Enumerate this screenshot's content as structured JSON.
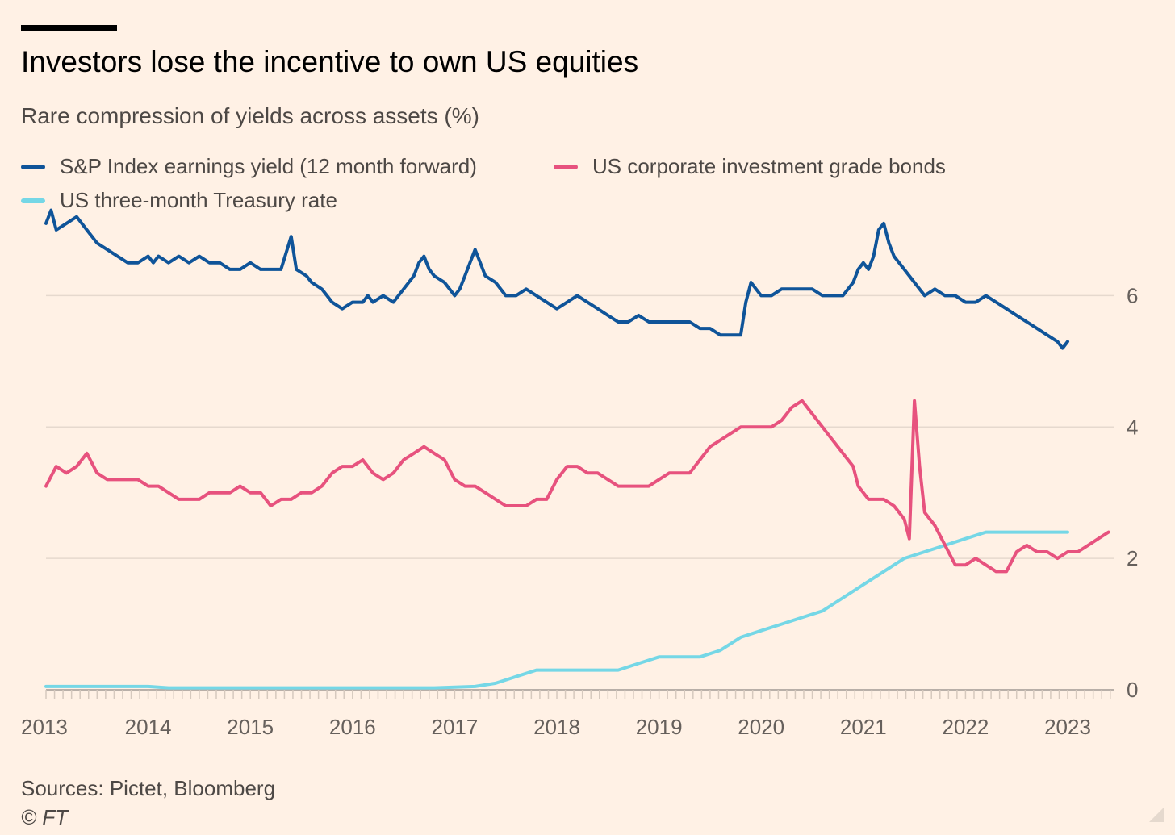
{
  "title": "Investors lose the incentive to own US equities",
  "subtitle": "Rare compression of yields across assets (%)",
  "source": "Sources: Pictet, Bloomberg",
  "copyright": "© FT",
  "chart_data": {
    "type": "line",
    "title": "Investors lose the incentive to own US equities",
    "subtitle": "Rare compression of yields across assets (%)",
    "xlabel": "",
    "ylabel": "%",
    "xlim": [
      2013.0,
      2023.45
    ],
    "ylim": [
      0,
      7
    ],
    "y_ticks": [
      0,
      2,
      4,
      6
    ],
    "y_axis_position": "right",
    "x_ticks": [
      {
        "value": 2013.0,
        "label": "2013"
      },
      {
        "value": 2014.0,
        "label": "2014"
      },
      {
        "value": 2015.0,
        "label": "2015"
      },
      {
        "value": 2016.0,
        "label": "2016"
      },
      {
        "value": 2017.0,
        "label": "2017"
      },
      {
        "value": 2018.0,
        "label": "2018"
      },
      {
        "value": 2019.0,
        "label": "2019"
      },
      {
        "value": 2020.0,
        "label": "2020"
      },
      {
        "value": 2021.0,
        "label": "2021"
      },
      {
        "value": 2022.0,
        "label": "2022"
      },
      {
        "value": 2023.0,
        "label": "2023"
      }
    ],
    "grid": true,
    "legend_position": "top-left",
    "series": [
      {
        "name": "S&P Index earnings yield (12 month forward)",
        "color": "#0F5499",
        "points": [
          [
            2013.0,
            7.1
          ],
          [
            2013.05,
            7.3
          ],
          [
            2013.1,
            7.0
          ],
          [
            2013.2,
            7.1
          ],
          [
            2013.3,
            7.2
          ],
          [
            2013.4,
            7.0
          ],
          [
            2013.5,
            6.8
          ],
          [
            2013.6,
            6.7
          ],
          [
            2013.7,
            6.6
          ],
          [
            2013.8,
            6.5
          ],
          [
            2013.9,
            6.5
          ],
          [
            2014.0,
            6.6
          ],
          [
            2014.05,
            6.5
          ],
          [
            2014.1,
            6.6
          ],
          [
            2014.2,
            6.5
          ],
          [
            2014.3,
            6.6
          ],
          [
            2014.4,
            6.5
          ],
          [
            2014.5,
            6.6
          ],
          [
            2014.6,
            6.5
          ],
          [
            2014.7,
            6.5
          ],
          [
            2014.8,
            6.4
          ],
          [
            2014.9,
            6.4
          ],
          [
            2015.0,
            6.5
          ],
          [
            2015.1,
            6.4
          ],
          [
            2015.2,
            6.4
          ],
          [
            2015.3,
            6.4
          ],
          [
            2015.4,
            6.9
          ],
          [
            2015.45,
            6.4
          ],
          [
            2015.55,
            6.3
          ],
          [
            2015.6,
            6.2
          ],
          [
            2015.7,
            6.1
          ],
          [
            2015.75,
            6.0
          ],
          [
            2015.8,
            5.9
          ],
          [
            2015.9,
            5.8
          ],
          [
            2016.0,
            5.9
          ],
          [
            2016.1,
            5.9
          ],
          [
            2016.15,
            6.0
          ],
          [
            2016.2,
            5.9
          ],
          [
            2016.3,
            6.0
          ],
          [
            2016.4,
            5.9
          ],
          [
            2016.5,
            6.1
          ],
          [
            2016.6,
            6.3
          ],
          [
            2016.65,
            6.5
          ],
          [
            2016.7,
            6.6
          ],
          [
            2016.75,
            6.4
          ],
          [
            2016.8,
            6.3
          ],
          [
            2016.9,
            6.2
          ],
          [
            2017.0,
            6.0
          ],
          [
            2017.05,
            6.1
          ],
          [
            2017.1,
            6.3
          ],
          [
            2017.15,
            6.5
          ],
          [
            2017.2,
            6.7
          ],
          [
            2017.25,
            6.5
          ],
          [
            2017.3,
            6.3
          ],
          [
            2017.4,
            6.2
          ],
          [
            2017.5,
            6.0
          ],
          [
            2017.6,
            6.0
          ],
          [
            2017.7,
            6.1
          ],
          [
            2017.8,
            6.0
          ],
          [
            2017.9,
            5.9
          ],
          [
            2018.0,
            5.8
          ],
          [
            2018.1,
            5.9
          ],
          [
            2018.2,
            6.0
          ],
          [
            2018.3,
            5.9
          ],
          [
            2018.4,
            5.8
          ],
          [
            2018.5,
            5.7
          ],
          [
            2018.6,
            5.6
          ],
          [
            2018.7,
            5.6
          ],
          [
            2018.8,
            5.7
          ],
          [
            2018.9,
            5.6
          ],
          [
            2019.0,
            5.6
          ],
          [
            2019.1,
            5.6
          ],
          [
            2019.2,
            5.6
          ],
          [
            2019.3,
            5.6
          ],
          [
            2019.4,
            5.5
          ],
          [
            2019.5,
            5.5
          ],
          [
            2019.6,
            5.4
          ],
          [
            2019.7,
            5.4
          ],
          [
            2019.8,
            5.4
          ],
          [
            2019.85,
            5.9
          ],
          [
            2019.9,
            6.2
          ],
          [
            2019.95,
            6.1
          ],
          [
            2020.0,
            6.0
          ],
          [
            2020.1,
            6.0
          ],
          [
            2020.2,
            6.1
          ],
          [
            2020.3,
            6.1
          ],
          [
            2020.4,
            6.1
          ],
          [
            2020.5,
            6.1
          ],
          [
            2020.6,
            6.0
          ],
          [
            2020.7,
            6.0
          ],
          [
            2020.8,
            6.0
          ],
          [
            2020.9,
            6.2
          ],
          [
            2020.95,
            6.4
          ],
          [
            2021.0,
            6.5
          ],
          [
            2021.05,
            6.4
          ],
          [
            2021.1,
            6.6
          ],
          [
            2021.15,
            7.0
          ],
          [
            2021.2,
            7.1
          ],
          [
            2021.25,
            6.8
          ],
          [
            2021.3,
            6.6
          ],
          [
            2021.4,
            6.4
          ],
          [
            2021.5,
            6.2
          ],
          [
            2021.6,
            6.0
          ],
          [
            2021.7,
            6.1
          ],
          [
            2021.8,
            6.0
          ],
          [
            2021.9,
            6.0
          ],
          [
            2022.0,
            5.9
          ],
          [
            2022.1,
            5.9
          ],
          [
            2022.2,
            6.0
          ],
          [
            2022.3,
            5.9
          ],
          [
            2022.4,
            5.8
          ],
          [
            2022.5,
            5.7
          ],
          [
            2022.6,
            5.6
          ],
          [
            2022.7,
            5.5
          ],
          [
            2022.8,
            5.4
          ],
          [
            2022.9,
            5.3
          ],
          [
            2022.95,
            5.2
          ],
          [
            2023.0,
            5.3
          ]
        ]
      },
      {
        "name": "US corporate investment grade bonds",
        "color": "#E7527E",
        "points": [
          [
            2013.0,
            3.1
          ],
          [
            2013.1,
            3.4
          ],
          [
            2013.2,
            3.3
          ],
          [
            2013.3,
            3.4
          ],
          [
            2013.4,
            3.6
          ],
          [
            2013.5,
            3.3
          ],
          [
            2013.6,
            3.2
          ],
          [
            2013.7,
            3.2
          ],
          [
            2013.8,
            3.2
          ],
          [
            2013.9,
            3.2
          ],
          [
            2014.0,
            3.1
          ],
          [
            2014.1,
            3.1
          ],
          [
            2014.2,
            3.0
          ],
          [
            2014.3,
            2.9
          ],
          [
            2014.4,
            2.9
          ],
          [
            2014.5,
            2.9
          ],
          [
            2014.6,
            3.0
          ],
          [
            2014.7,
            3.0
          ],
          [
            2014.8,
            3.0
          ],
          [
            2014.9,
            3.1
          ],
          [
            2015.0,
            3.0
          ],
          [
            2015.1,
            3.0
          ],
          [
            2015.2,
            2.8
          ],
          [
            2015.3,
            2.9
          ],
          [
            2015.4,
            2.9
          ],
          [
            2015.5,
            3.0
          ],
          [
            2015.6,
            3.0
          ],
          [
            2015.7,
            3.1
          ],
          [
            2015.8,
            3.3
          ],
          [
            2015.9,
            3.4
          ],
          [
            2016.0,
            3.4
          ],
          [
            2016.1,
            3.5
          ],
          [
            2016.2,
            3.3
          ],
          [
            2016.3,
            3.2
          ],
          [
            2016.4,
            3.3
          ],
          [
            2016.5,
            3.5
          ],
          [
            2016.6,
            3.6
          ],
          [
            2016.7,
            3.7
          ],
          [
            2016.8,
            3.6
          ],
          [
            2016.9,
            3.5
          ],
          [
            2017.0,
            3.2
          ],
          [
            2017.1,
            3.1
          ],
          [
            2017.2,
            3.1
          ],
          [
            2017.3,
            3.0
          ],
          [
            2017.4,
            2.9
          ],
          [
            2017.5,
            2.8
          ],
          [
            2017.6,
            2.8
          ],
          [
            2017.7,
            2.8
          ],
          [
            2017.8,
            2.9
          ],
          [
            2017.9,
            2.9
          ],
          [
            2018.0,
            3.2
          ],
          [
            2018.1,
            3.4
          ],
          [
            2018.2,
            3.4
          ],
          [
            2018.3,
            3.3
          ],
          [
            2018.4,
            3.3
          ],
          [
            2018.5,
            3.2
          ],
          [
            2018.6,
            3.1
          ],
          [
            2018.7,
            3.1
          ],
          [
            2018.8,
            3.1
          ],
          [
            2018.9,
            3.1
          ],
          [
            2019.0,
            3.2
          ],
          [
            2019.1,
            3.3
          ],
          [
            2019.2,
            3.3
          ],
          [
            2019.3,
            3.3
          ],
          [
            2019.4,
            3.5
          ],
          [
            2019.5,
            3.7
          ],
          [
            2019.6,
            3.8
          ],
          [
            2019.7,
            3.9
          ],
          [
            2019.8,
            4.0
          ],
          [
            2019.9,
            4.0
          ],
          [
            2020.0,
            4.0
          ],
          [
            2020.1,
            4.0
          ],
          [
            2020.2,
            4.1
          ],
          [
            2020.3,
            4.3
          ],
          [
            2020.4,
            4.4
          ],
          [
            2020.5,
            4.2
          ],
          [
            2020.6,
            4.0
          ],
          [
            2020.7,
            3.8
          ],
          [
            2020.8,
            3.6
          ],
          [
            2020.9,
            3.4
          ],
          [
            2020.95,
            3.1
          ],
          [
            2021.0,
            3.0
          ],
          [
            2021.05,
            2.9
          ],
          [
            2021.1,
            2.9
          ],
          [
            2021.2,
            2.9
          ],
          [
            2021.3,
            2.8
          ],
          [
            2021.4,
            2.6
          ],
          [
            2021.45,
            2.3
          ],
          [
            2021.5,
            4.4
          ],
          [
            2021.55,
            3.4
          ],
          [
            2021.6,
            2.7
          ],
          [
            2021.7,
            2.5
          ],
          [
            2021.8,
            2.2
          ],
          [
            2021.9,
            1.9
          ],
          [
            2022.0,
            1.9
          ],
          [
            2022.1,
            2.0
          ],
          [
            2022.2,
            1.9
          ],
          [
            2022.3,
            1.8
          ],
          [
            2022.4,
            1.8
          ],
          [
            2022.5,
            2.1
          ],
          [
            2022.6,
            2.2
          ],
          [
            2022.7,
            2.1
          ],
          [
            2022.8,
            2.1
          ],
          [
            2022.9,
            2.0
          ],
          [
            2023.0,
            2.1
          ],
          [
            2023.1,
            2.1
          ],
          [
            2023.2,
            2.2
          ],
          [
            2023.3,
            2.3
          ],
          [
            2023.4,
            2.4
          ]
        ]
      },
      {
        "name": "US three-month Treasury rate",
        "color": "#75D7E6",
        "points": [
          [
            2013.0,
            0.05
          ],
          [
            2013.2,
            0.05
          ],
          [
            2013.4,
            0.05
          ],
          [
            2013.6,
            0.05
          ],
          [
            2013.8,
            0.05
          ],
          [
            2014.0,
            0.05
          ],
          [
            2014.2,
            0.03
          ],
          [
            2014.4,
            0.03
          ],
          [
            2014.6,
            0.03
          ],
          [
            2014.8,
            0.03
          ],
          [
            2015.0,
            0.03
          ],
          [
            2015.2,
            0.03
          ],
          [
            2015.4,
            0.03
          ],
          [
            2015.6,
            0.03
          ],
          [
            2015.8,
            0.03
          ],
          [
            2016.0,
            0.03
          ],
          [
            2016.2,
            0.03
          ],
          [
            2016.4,
            0.03
          ],
          [
            2016.6,
            0.03
          ],
          [
            2016.8,
            0.03
          ],
          [
            2017.0,
            0.04
          ],
          [
            2017.2,
            0.05
          ],
          [
            2017.4,
            0.1
          ],
          [
            2017.6,
            0.2
          ],
          [
            2017.8,
            0.3
          ],
          [
            2018.0,
            0.3
          ],
          [
            2018.2,
            0.3
          ],
          [
            2018.4,
            0.3
          ],
          [
            2018.6,
            0.3
          ],
          [
            2018.8,
            0.4
          ],
          [
            2019.0,
            0.5
          ],
          [
            2019.2,
            0.5
          ],
          [
            2019.4,
            0.5
          ],
          [
            2019.6,
            0.6
          ],
          [
            2019.8,
            0.8
          ],
          [
            2020.0,
            0.9
          ],
          [
            2020.2,
            1.0
          ],
          [
            2020.4,
            1.1
          ],
          [
            2020.6,
            1.2
          ],
          [
            2020.8,
            1.4
          ],
          [
            2021.0,
            1.6
          ],
          [
            2021.2,
            1.8
          ],
          [
            2021.4,
            2.0
          ],
          [
            2021.6,
            2.1
          ],
          [
            2021.8,
            2.2
          ],
          [
            2022.0,
            2.3
          ],
          [
            2022.2,
            2.4
          ],
          [
            2022.4,
            2.4
          ],
          [
            2022.6,
            2.4
          ],
          [
            2022.8,
            2.4
          ],
          [
            2023.0,
            2.4
          ]
        ]
      }
    ]
  }
}
